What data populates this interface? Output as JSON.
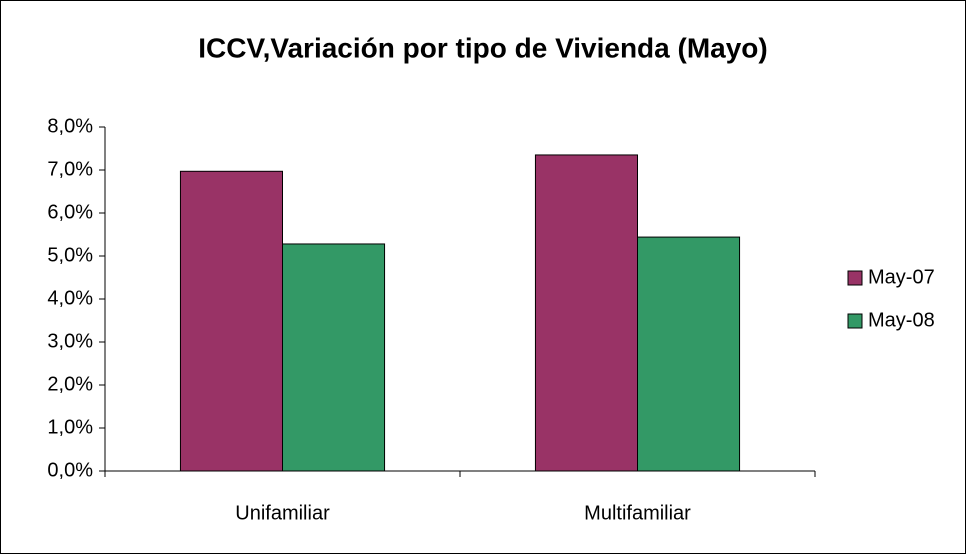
{
  "chart_data": {
    "type": "bar",
    "title": "ICCV,Variación por tipo de Vivienda (Mayo)",
    "categories": [
      "Unifamiliar",
      "Multifamiliar"
    ],
    "series": [
      {
        "name": "May-07",
        "color": "#993366",
        "values": [
          6.97,
          7.35
        ]
      },
      {
        "name": "May-08",
        "color": "#339966",
        "values": [
          5.28,
          5.44
        ]
      }
    ],
    "ylim": [
      0,
      8
    ],
    "yticks": [
      {
        "value": 0,
        "label": "0,0%"
      },
      {
        "value": 1,
        "label": "1,0%"
      },
      {
        "value": 2,
        "label": "2,0%"
      },
      {
        "value": 3,
        "label": "3,0%"
      },
      {
        "value": 4,
        "label": "4,0%"
      },
      {
        "value": 5,
        "label": "5,0%"
      },
      {
        "value": 6,
        "label": "6,0%"
      },
      {
        "value": 7,
        "label": "7,0%"
      },
      {
        "value": 8,
        "label": "8,0%"
      }
    ],
    "grid": false,
    "legend": "right"
  }
}
